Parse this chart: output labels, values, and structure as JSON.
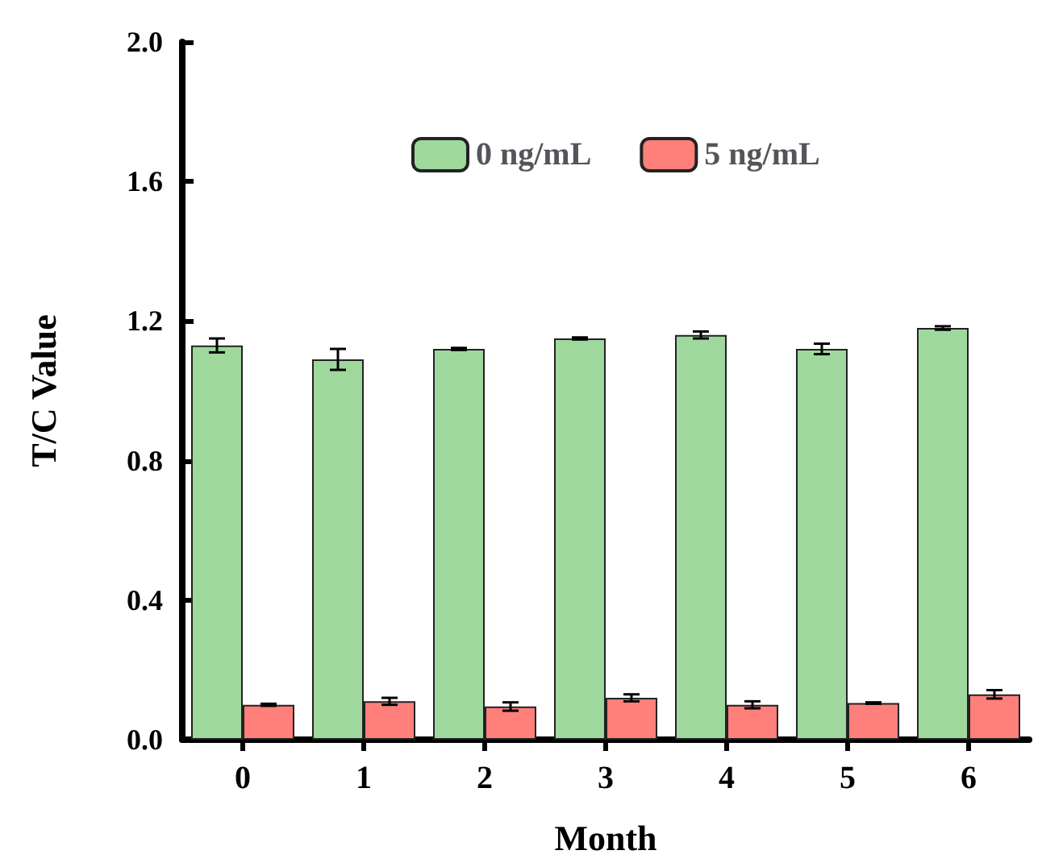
{
  "chart_data": {
    "type": "bar",
    "xlabel": "Month",
    "ylabel": "T/C Value",
    "categories": [
      "0",
      "1",
      "2",
      "3",
      "4",
      "5",
      "6"
    ],
    "series": [
      {
        "name": "0 ng/mL",
        "color": "#9fd89d",
        "values": [
          1.13,
          1.09,
          1.12,
          1.15,
          1.16,
          1.12,
          1.18
        ],
        "errors": [
          0.02,
          0.03,
          0.003,
          0.003,
          0.01,
          0.015,
          0.005
        ]
      },
      {
        "name": "5 ng/mL",
        "color": "#ff7f7b",
        "values": [
          0.1,
          0.11,
          0.095,
          0.12,
          0.1,
          0.105,
          0.13
        ],
        "errors": [
          0.003,
          0.01,
          0.012,
          0.01,
          0.01,
          0.002,
          0.012
        ]
      }
    ],
    "ylim": [
      0,
      2.0
    ],
    "yticks": [
      {
        "value": 0,
        "label": "0.0"
      },
      0.4,
      0.8,
      1.2,
      1.6,
      {
        "value": 2,
        "label": "2.0"
      }
    ],
    "grid": false,
    "legend": "top"
  }
}
